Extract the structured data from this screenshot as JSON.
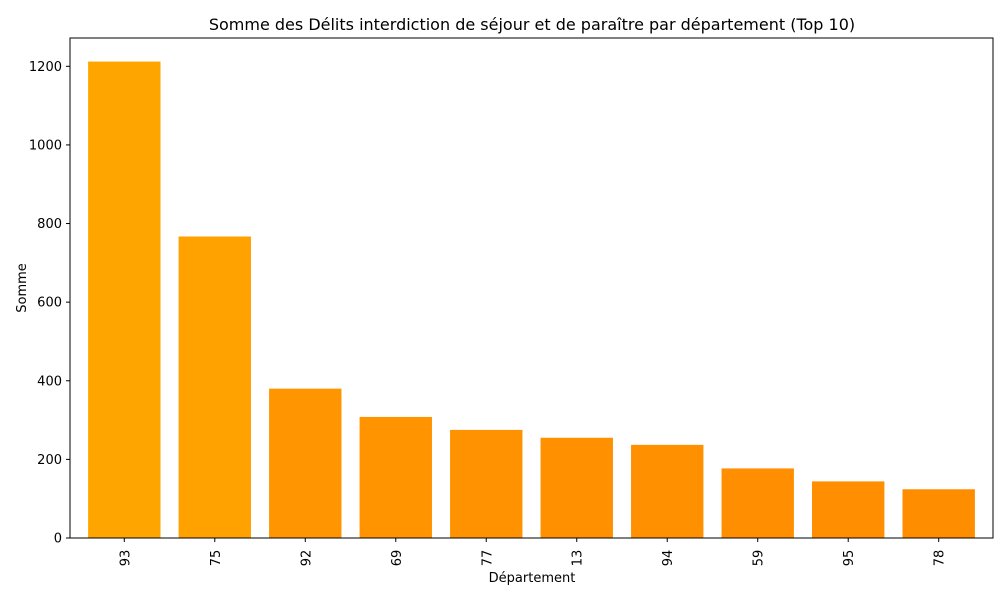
{
  "chart_data": {
    "type": "bar",
    "title": "Somme des Délits interdiction de séjour et de paraître par département (Top 10)",
    "xlabel": "Département",
    "ylabel": "Somme",
    "categories": [
      "93",
      "75",
      "92",
      "69",
      "77",
      "13",
      "94",
      "59",
      "95",
      "78"
    ],
    "values": [
      1212,
      767,
      380,
      308,
      275,
      255,
      237,
      177,
      144,
      124
    ],
    "ylim": [
      0,
      1272
    ],
    "yticks": [
      0,
      200,
      400,
      600,
      800,
      1000,
      1200
    ],
    "grid": false,
    "colors": [
      "#FFA500",
      "#FFA200",
      "#FF9500",
      "#FF9300",
      "#FF9200",
      "#FF9100",
      "#FF9100",
      "#FF8F00",
      "#FF8E00",
      "#FF8D00"
    ]
  }
}
